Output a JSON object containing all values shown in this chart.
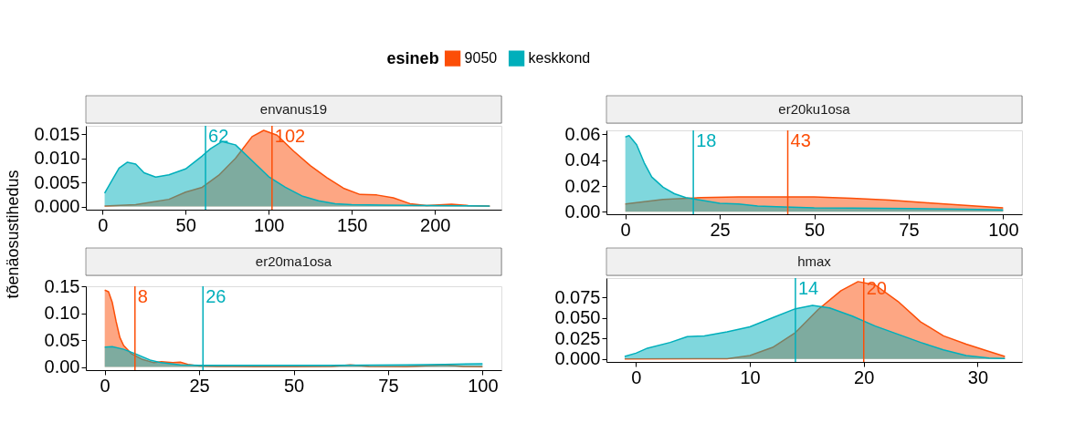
{
  "chart_data": [
    {
      "type": "area",
      "title": "envanus19",
      "ylabel": "tõenäosustihedus",
      "legend_title": "esineb",
      "legend": "top",
      "xlim": [
        -10,
        240
      ],
      "xticks": [
        0,
        50,
        100,
        150,
        200
      ],
      "ylim": [
        -0.00065,
        0.01675
      ],
      "yticks": [
        {
          "value": 0,
          "label": "0.000"
        },
        {
          "value": 0.005,
          "label": "0.005"
        },
        {
          "value": 0.01,
          "label": "0.010"
        },
        {
          "value": 0.015,
          "label": "0.015"
        }
      ],
      "series": [
        {
          "name": "9050",
          "color": "#fc4e07",
          "x": [
            1.3,
            20,
            40,
            50,
            60,
            70,
            80,
            90,
            97,
            105,
            115,
            125,
            135,
            145,
            155,
            165,
            175,
            185,
            195,
            210,
            220,
            233
          ],
          "values": [
            0.0001,
            0.0004,
            0.0015,
            0.003,
            0.004,
            0.0065,
            0.01,
            0.0145,
            0.0158,
            0.0148,
            0.0115,
            0.0085,
            0.006,
            0.0038,
            0.0025,
            0.0024,
            0.0018,
            0.0006,
            0.0002,
            0.0005,
            0.0002,
            0.0001
          ]
        },
        {
          "name": "keskkond",
          "color": "#00afbb",
          "x": [
            1.3,
            5,
            10,
            15,
            20,
            25,
            32,
            40,
            50,
            60,
            65,
            72,
            80,
            90,
            100,
            110,
            120,
            130,
            140,
            150,
            170,
            200,
            233
          ],
          "values": [
            0.0028,
            0.005,
            0.008,
            0.0092,
            0.0088,
            0.007,
            0.0061,
            0.0066,
            0.0078,
            0.0105,
            0.012,
            0.0135,
            0.0128,
            0.0095,
            0.0062,
            0.004,
            0.0022,
            0.0012,
            0.0006,
            0.0004,
            0.0003,
            0.0002,
            0.0001
          ]
        }
      ],
      "ref_lines": [
        {
          "axis": "x",
          "value": 62,
          "label": "62",
          "color": "#00afbb"
        },
        {
          "axis": "x",
          "value": 102,
          "label": "102",
          "color": "#fc4e07"
        }
      ]
    },
    {
      "type": "area",
      "title": "er20ku1osa",
      "xlim": [
        -5,
        105
      ],
      "xticks": [
        0,
        25,
        50,
        75,
        100
      ],
      "ylim": [
        -0.0019,
        0.0631
      ],
      "yticks": [
        {
          "value": 0,
          "label": "0.00"
        },
        {
          "value": 0.02,
          "label": "0.02"
        },
        {
          "value": 0.04,
          "label": "0.04"
        },
        {
          "value": 0.06,
          "label": "0.06"
        }
      ],
      "series": [
        {
          "name": "9050",
          "color": "#fc4e07",
          "x": [
            0,
            10,
            20,
            30,
            50,
            60,
            70,
            80,
            90,
            100
          ],
          "values": [
            0.006,
            0.0095,
            0.011,
            0.0115,
            0.0115,
            0.0105,
            0.009,
            0.007,
            0.005,
            0.003
          ]
        },
        {
          "name": "keskkond",
          "color": "#00afbb",
          "x": [
            0,
            1,
            3,
            5,
            7,
            10,
            13,
            16,
            20,
            25,
            30,
            35,
            40,
            50,
            60,
            75,
            90,
            100
          ],
          "values": [
            0.058,
            0.059,
            0.052,
            0.038,
            0.027,
            0.019,
            0.014,
            0.011,
            0.009,
            0.0065,
            0.006,
            0.0045,
            0.004,
            0.003,
            0.0028,
            0.0025,
            0.002,
            0.0015
          ]
        }
      ],
      "ref_lines": [
        {
          "axis": "x",
          "value": 18,
          "label": "18",
          "color": "#00afbb"
        },
        {
          "axis": "x",
          "value": 43,
          "label": "43",
          "color": "#fc4e07"
        }
      ]
    },
    {
      "type": "area",
      "title": "er20ma1osa",
      "xlim": [
        -5,
        105
      ],
      "xticks": [
        0,
        25,
        50,
        75,
        100
      ],
      "ylim": [
        -0.0058,
        0.1502
      ],
      "yticks": [
        {
          "value": 0,
          "label": "0.00"
        },
        {
          "value": 0.05,
          "label": "0.05"
        },
        {
          "value": 0.1,
          "label": "0.10"
        },
        {
          "value": 0.15,
          "label": "0.15"
        }
      ],
      "series": [
        {
          "name": "9050",
          "color": "#fc4e07",
          "x": [
            0,
            1,
            2,
            3,
            4,
            5,
            7,
            10,
            13,
            15,
            18,
            20,
            22,
            25,
            30,
            40,
            50,
            60,
            65,
            70,
            80,
            90,
            95,
            100
          ],
          "values": [
            0.143,
            0.14,
            0.12,
            0.085,
            0.055,
            0.04,
            0.025,
            0.014,
            0.008,
            0.01,
            0.008,
            0.009,
            0.005,
            0.002,
            0.001,
            0.0005,
            0.0005,
            0.001,
            0.004,
            0.001,
            0.0005,
            0.004,
            0.001,
            0.0005
          ]
        },
        {
          "name": "keskkond",
          "color": "#00afbb",
          "x": [
            0,
            2,
            5,
            8,
            12,
            15,
            20,
            25,
            40,
            60,
            80,
            90,
            100
          ],
          "values": [
            0.037,
            0.038,
            0.033,
            0.025,
            0.013,
            0.008,
            0.004,
            0.003,
            0.003,
            0.003,
            0.004,
            0.005,
            0.006
          ]
        }
      ],
      "ref_lines": [
        {
          "axis": "x",
          "value": 8,
          "label": "8",
          "color": "#fc4e07"
        },
        {
          "axis": "x",
          "value": 26,
          "label": "26",
          "color": "#00afbb"
        }
      ]
    },
    {
      "type": "area",
      "title": "hmax",
      "xlim": [
        -2.6,
        33.9
      ],
      "xticks": [
        0,
        10,
        20,
        30
      ],
      "ylim": [
        -0.0037,
        0.0983
      ],
      "yticks": [
        {
          "value": 0,
          "label": "0.000"
        },
        {
          "value": 0.025,
          "label": "0.025"
        },
        {
          "value": 0.05,
          "label": "0.050"
        },
        {
          "value": 0.075,
          "label": "0.075"
        }
      ],
      "series": [
        {
          "name": "9050",
          "color": "#fc4e07",
          "x": [
            -1,
            8,
            10,
            12,
            14,
            16,
            18,
            19.5,
            21,
            23,
            25,
            27,
            29,
            31,
            32.4
          ],
          "values": [
            0,
            0.0003,
            0.004,
            0.014,
            0.032,
            0.06,
            0.083,
            0.094,
            0.09,
            0.07,
            0.045,
            0.028,
            0.018,
            0.009,
            0.003
          ]
        },
        {
          "name": "keskkond",
          "color": "#00afbb",
          "x": [
            -1,
            0,
            1,
            3,
            4.5,
            6,
            8,
            10,
            12,
            14,
            15.5,
            17,
            19,
            21,
            23,
            25,
            27,
            29,
            31,
            32.4
          ],
          "values": [
            0.003,
            0.007,
            0.013,
            0.02,
            0.027,
            0.028,
            0.033,
            0.039,
            0.05,
            0.061,
            0.065,
            0.062,
            0.052,
            0.04,
            0.03,
            0.02,
            0.011,
            0.004,
            0.001,
            0.0005
          ]
        }
      ],
      "ref_lines": [
        {
          "axis": "x",
          "value": 14,
          "label": "14",
          "color": "#00afbb"
        },
        {
          "axis": "x",
          "value": 20,
          "label": "20",
          "color": "#fc4e07"
        }
      ]
    }
  ]
}
